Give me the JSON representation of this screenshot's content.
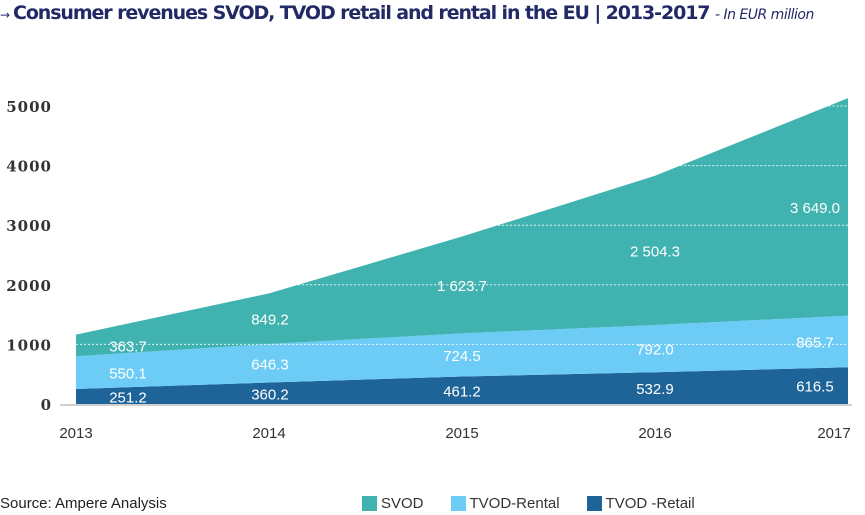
{
  "title": {
    "arrow": "→",
    "main": "Consumer revenues SVOD, TVOD retail and rental in the EU | 2013-2017",
    "subtitle": "- In EUR million"
  },
  "source": "Source: Ampere Analysis",
  "chart_data": {
    "type": "area",
    "stacked": true,
    "categories": [
      "2013",
      "2014",
      "2015",
      "2016",
      "2017"
    ],
    "series": [
      {
        "name": "TVOD -Retail",
        "color": "#1f6499",
        "values": [
          251.2,
          360.2,
          461.2,
          532.9,
          616.5
        ],
        "labels": [
          "251.2",
          "360.2",
          "461.2",
          "532.9",
          "616.5"
        ]
      },
      {
        "name": "TVOD-Rental",
        "color": "#6dccf5",
        "values": [
          550.1,
          646.3,
          724.5,
          792.0,
          865.7
        ],
        "labels": [
          "550.1",
          "646.3",
          "724.5",
          "792.0",
          "865.7"
        ]
      },
      {
        "name": "SVOD",
        "color": "#40b3b0",
        "values": [
          363.7,
          849.2,
          1623.7,
          2504.3,
          3649.0
        ],
        "labels": [
          "363.7",
          "849.2",
          "1 623.7",
          "2 504.3",
          "3 649.0"
        ]
      }
    ],
    "yticks": [
      "0",
      "1000",
      "2000",
      "3000",
      "4000",
      "5000"
    ],
    "ylim": [
      0,
      5000
    ],
    "grid": true,
    "legend": "bottom"
  }
}
